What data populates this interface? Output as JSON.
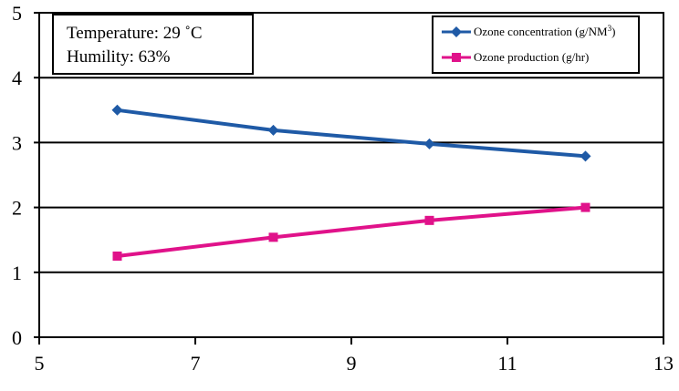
{
  "chart_data": {
    "type": "line",
    "xlim": [
      5,
      13
    ],
    "ylim": [
      0,
      5
    ],
    "x_ticks": [
      "5",
      "7",
      "9",
      "11",
      "13"
    ],
    "y_ticks": [
      "0",
      "1",
      "2",
      "3",
      "4",
      "5"
    ],
    "grid": "horizontal",
    "legend_position": "top-right",
    "annotation": {
      "line1": "Temperature: 29 ˚C",
      "line2": "Humility: 63%"
    },
    "series": [
      {
        "name": "Ozone concentration (g/NM3)",
        "color": "#1f5aa6",
        "marker": "diamond",
        "x": [
          6,
          8,
          10,
          12
        ],
        "y": [
          3.5,
          3.19,
          2.98,
          2.79
        ]
      },
      {
        "name": "Ozone production (g/hr)",
        "color": "#e0128a",
        "marker": "square",
        "x": [
          6,
          8,
          10,
          12
        ],
        "y": [
          1.25,
          1.54,
          1.8,
          2.0
        ]
      }
    ]
  }
}
